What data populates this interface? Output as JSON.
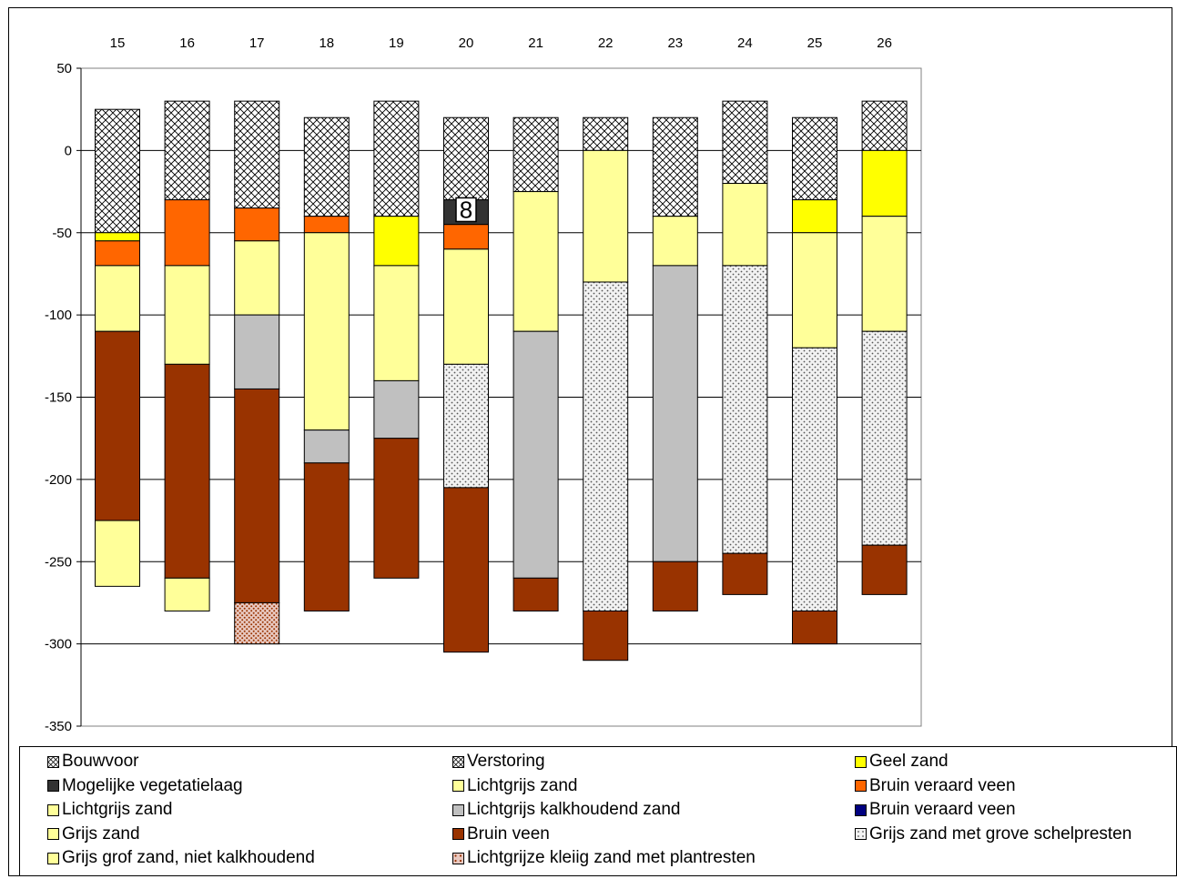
{
  "chart_data": {
    "type": "bar",
    "stacked": true,
    "categories": [
      "15",
      "16",
      "17",
      "18",
      "19",
      "20",
      "21",
      "22",
      "23",
      "24",
      "25",
      "26"
    ],
    "ylim": [
      -350,
      50
    ],
    "yticks": [
      50,
      0,
      -50,
      -100,
      -150,
      -200,
      -250,
      -300,
      -350
    ],
    "grid": true,
    "legend_position": "bottom",
    "layers": {
      "bouwvoor": {
        "label": "Bouwvoor",
        "pattern": "crosshatch",
        "color": "#ffffff"
      },
      "verstoring": {
        "label": "Verstoring",
        "pattern": "crosshatch",
        "color": "#ffffff"
      },
      "geel_zand": {
        "label": "Geel zand",
        "pattern": "solid",
        "color": "#ffff00"
      },
      "veg_laag": {
        "label": "Mogelijke vegetatielaag",
        "pattern": "solid",
        "color": "#333333"
      },
      "lichtgrijs_zand_a": {
        "label": "Lichtgrijs zand",
        "pattern": "solid",
        "color": "#ffff99"
      },
      "bruin_veraard_veen_a": {
        "label": "Bruin veraard veen",
        "pattern": "solid",
        "color": "#ff6600"
      },
      "lichtgrijs_zand_b": {
        "label": "Lichtgrijs zand",
        "pattern": "solid",
        "color": "#ffff99"
      },
      "lichtgrijs_kalk": {
        "label": "Lichtgrijs kalkhoudend zand",
        "pattern": "solid",
        "color": "#c0c0c0"
      },
      "bruin_veraard_veen_b": {
        "label": "Bruin veraard veen",
        "pattern": "solid",
        "color": "#000080"
      },
      "grijs_zand": {
        "label": "Grijs zand",
        "pattern": "solid",
        "color": "#ffff99"
      },
      "bruin_veen": {
        "label": "Bruin veen",
        "pattern": "solid",
        "color": "#993300"
      },
      "grijs_schelp": {
        "label": "Grijs zand met grove schelpresten",
        "pattern": "dots",
        "color": "#ffffff"
      },
      "grijs_grof": {
        "label": "Grijs grof zand, niet kalkhoudend",
        "pattern": "solid",
        "color": "#ffff99"
      },
      "lichtgrijs_klei": {
        "label": "Lichtgrijze kleiig zand met plantresten",
        "pattern": "reddots",
        "color": "#ffffff"
      }
    },
    "legend_order": [
      "bouwvoor",
      "verstoring",
      "geel_zand",
      "veg_laag",
      "lichtgrijs_zand_a",
      "bruin_veraard_veen_a",
      "lichtgrijs_zand_b",
      "lichtgrijs_kalk",
      "bruin_veraard_veen_b",
      "grijs_zand",
      "bruin_veen",
      "grijs_schelp",
      "grijs_grof",
      "lichtgrijs_klei"
    ],
    "columns": [
      {
        "name": "15",
        "segments": [
          {
            "layer": "bouwvoor",
            "top": 25,
            "bottom": -50
          },
          {
            "layer": "geel_zand",
            "top": -50,
            "bottom": -55
          },
          {
            "layer": "bruin_veraard_veen_a",
            "top": -55,
            "bottom": -70
          },
          {
            "layer": "lichtgrijs_zand_b",
            "top": -70,
            "bottom": -110
          },
          {
            "layer": "bruin_veen",
            "top": -110,
            "bottom": -225
          },
          {
            "layer": "grijs_zand",
            "top": -225,
            "bottom": -265
          }
        ]
      },
      {
        "name": "16",
        "segments": [
          {
            "layer": "bouwvoor",
            "top": 30,
            "bottom": -30
          },
          {
            "layer": "bruin_veraard_veen_a",
            "top": -30,
            "bottom": -70
          },
          {
            "layer": "lichtgrijs_zand_b",
            "top": -70,
            "bottom": -130
          },
          {
            "layer": "bruin_veen",
            "top": -130,
            "bottom": -260
          },
          {
            "layer": "grijs_zand",
            "top": -260,
            "bottom": -280
          }
        ]
      },
      {
        "name": "17",
        "segments": [
          {
            "layer": "bouwvoor",
            "top": 30,
            "bottom": -35
          },
          {
            "layer": "bruin_veraard_veen_a",
            "top": -35,
            "bottom": -55
          },
          {
            "layer": "lichtgrijs_zand_b",
            "top": -55,
            "bottom": -100
          },
          {
            "layer": "lichtgrijs_kalk",
            "top": -100,
            "bottom": -145
          },
          {
            "layer": "bruin_veen",
            "top": -145,
            "bottom": -275
          },
          {
            "layer": "lichtgrijs_klei",
            "top": -275,
            "bottom": -300
          }
        ]
      },
      {
        "name": "18",
        "segments": [
          {
            "layer": "bouwvoor",
            "top": 20,
            "bottom": -40
          },
          {
            "layer": "bruin_veraard_veen_a",
            "top": -40,
            "bottom": -50
          },
          {
            "layer": "lichtgrijs_zand_b",
            "top": -50,
            "bottom": -170
          },
          {
            "layer": "lichtgrijs_kalk",
            "top": -170,
            "bottom": -190
          },
          {
            "layer": "bruin_veen",
            "top": -190,
            "bottom": -280
          }
        ]
      },
      {
        "name": "19",
        "segments": [
          {
            "layer": "bouwvoor",
            "top": 30,
            "bottom": -40
          },
          {
            "layer": "geel_zand",
            "top": -40,
            "bottom": -70
          },
          {
            "layer": "lichtgrijs_zand_b",
            "top": -70,
            "bottom": -140
          },
          {
            "layer": "lichtgrijs_kalk",
            "top": -140,
            "bottom": -175
          },
          {
            "layer": "bruin_veen",
            "top": -175,
            "bottom": -260
          }
        ]
      },
      {
        "name": "20",
        "segments": [
          {
            "layer": "verstoring",
            "top": 20,
            "bottom": -30
          },
          {
            "layer": "veg_laag",
            "top": -30,
            "bottom": -45
          },
          {
            "layer": "bruin_veraard_veen_a",
            "top": -45,
            "bottom": -60
          },
          {
            "layer": "lichtgrijs_zand_b",
            "top": -60,
            "bottom": -130
          },
          {
            "layer": "grijs_schelp",
            "top": -130,
            "bottom": -205
          },
          {
            "layer": "bruin_veen",
            "top": -205,
            "bottom": -305
          }
        ]
      },
      {
        "name": "21",
        "segments": [
          {
            "layer": "bouwvoor",
            "top": 20,
            "bottom": -25
          },
          {
            "layer": "lichtgrijs_zand_b",
            "top": -25,
            "bottom": -110
          },
          {
            "layer": "lichtgrijs_kalk",
            "top": -110,
            "bottom": -260
          },
          {
            "layer": "bruin_veen",
            "top": -260,
            "bottom": -280
          }
        ]
      },
      {
        "name": "22",
        "segments": [
          {
            "layer": "bouwvoor",
            "top": 20,
            "bottom": 0
          },
          {
            "layer": "lichtgrijs_zand_b",
            "top": 0,
            "bottom": -80
          },
          {
            "layer": "grijs_schelp",
            "top": -80,
            "bottom": -280
          },
          {
            "layer": "bruin_veen",
            "top": -280,
            "bottom": -310
          }
        ]
      },
      {
        "name": "23",
        "segments": [
          {
            "layer": "bouwvoor",
            "top": 20,
            "bottom": -40
          },
          {
            "layer": "lichtgrijs_zand_b",
            "top": -40,
            "bottom": -70
          },
          {
            "layer": "lichtgrijs_kalk",
            "top": -70,
            "bottom": -250
          },
          {
            "layer": "bruin_veen",
            "top": -250,
            "bottom": -280
          }
        ]
      },
      {
        "name": "24",
        "segments": [
          {
            "layer": "bouwvoor",
            "top": 30,
            "bottom": -20
          },
          {
            "layer": "lichtgrijs_zand_b",
            "top": -20,
            "bottom": -70
          },
          {
            "layer": "grijs_schelp",
            "top": -70,
            "bottom": -245
          },
          {
            "layer": "bruin_veen",
            "top": -245,
            "bottom": -270
          }
        ]
      },
      {
        "name": "25",
        "segments": [
          {
            "layer": "bouwvoor",
            "top": 20,
            "bottom": -30
          },
          {
            "layer": "geel_zand",
            "top": -30,
            "bottom": -50
          },
          {
            "layer": "lichtgrijs_zand_b",
            "top": -50,
            "bottom": -120
          },
          {
            "layer": "grijs_schelp",
            "top": -120,
            "bottom": -280
          },
          {
            "layer": "bruin_veen",
            "top": -280,
            "bottom": -300
          }
        ]
      },
      {
        "name": "26",
        "segments": [
          {
            "layer": "bouwvoor",
            "top": 30,
            "bottom": 0
          },
          {
            "layer": "geel_zand",
            "top": 0,
            "bottom": -40
          },
          {
            "layer": "lichtgrijs_zand_b",
            "top": -40,
            "bottom": -110
          },
          {
            "layer": "grijs_schelp",
            "top": -110,
            "bottom": -240
          },
          {
            "layer": "bruin_veen",
            "top": -240,
            "bottom": -270
          }
        ]
      }
    ],
    "annotations": [
      {
        "text": "8",
        "column": "20",
        "y": -36
      }
    ]
  }
}
